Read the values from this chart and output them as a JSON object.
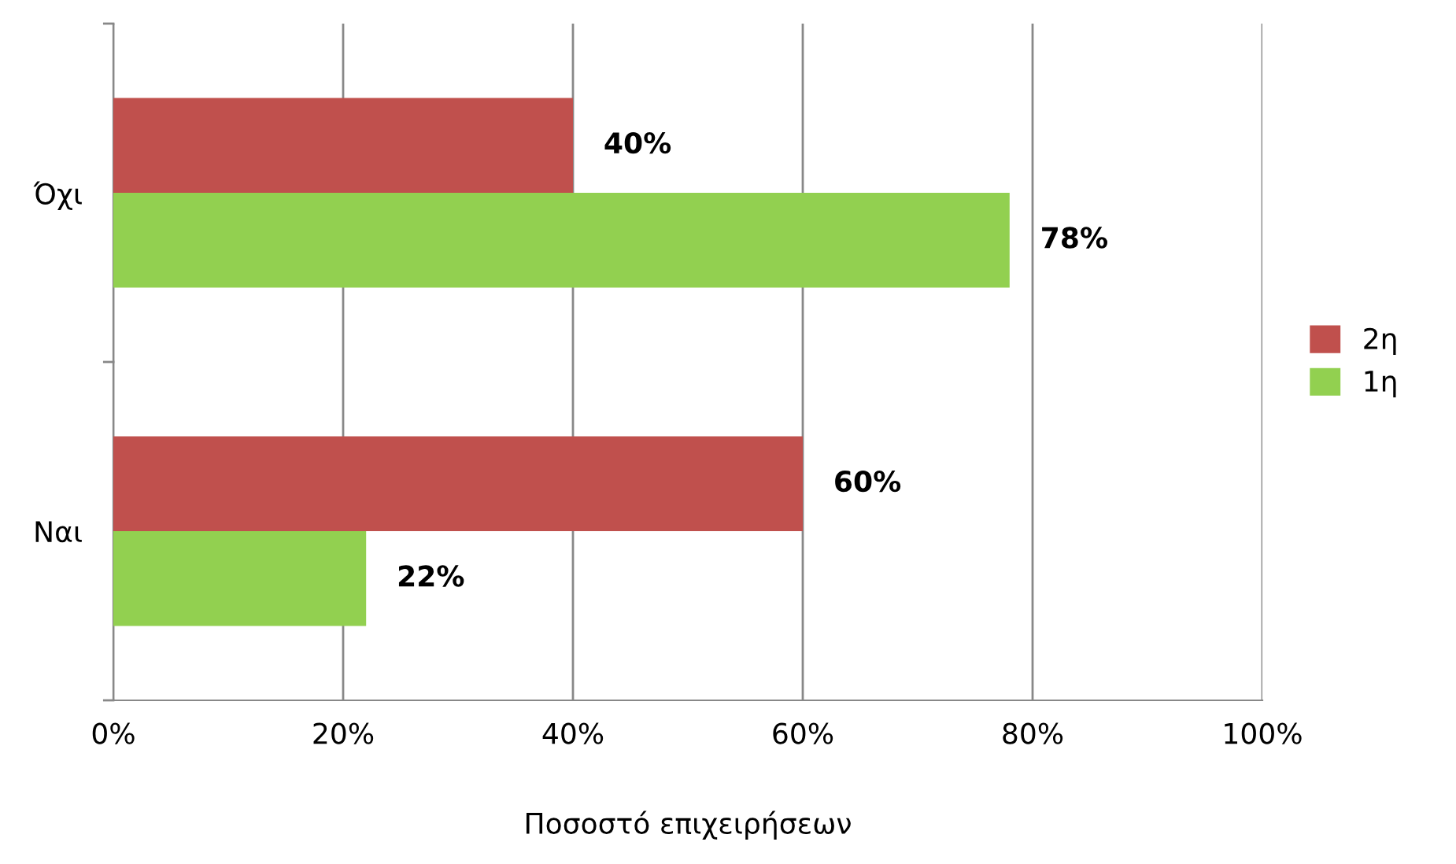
{
  "chart_data": {
    "type": "bar",
    "orientation": "horizontal",
    "xlabel": "Ποσοστό επιχειρήσεων",
    "categories": [
      "Όχι",
      "Ναι"
    ],
    "series": [
      {
        "name": "2η",
        "color": "#c0504d",
        "values": [
          40,
          60
        ],
        "value_labels": [
          "40%",
          "60%"
        ]
      },
      {
        "name": "1η",
        "color": "#92d050",
        "values": [
          78,
          22
        ],
        "value_labels": [
          "78%",
          "22%"
        ]
      }
    ],
    "xlim": [
      0,
      100
    ],
    "xticks": [
      {
        "value": 0,
        "label": "0%"
      },
      {
        "value": 20,
        "label": "20%"
      },
      {
        "value": 40,
        "label": "40%"
      },
      {
        "value": 60,
        "label": "60%"
      },
      {
        "value": 80,
        "label": "80%"
      },
      {
        "value": 100,
        "label": "100%"
      }
    ],
    "grid": "x",
    "legend": "right"
  }
}
